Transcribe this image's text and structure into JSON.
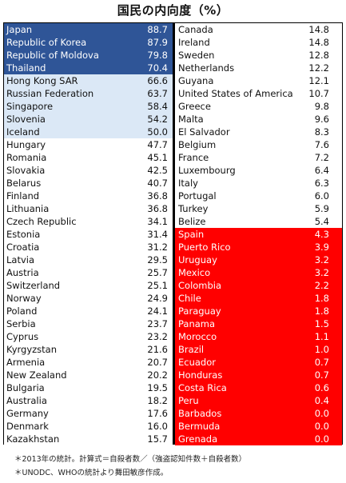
{
  "title": "国民の内向度（%）",
  "colors": {
    "tier1": "#2f5597",
    "tier2": "#dbe8f6",
    "tier3": "#ffffff",
    "tier4": "#ff0000"
  },
  "chart_data": {
    "type": "table",
    "title": "国民の内向度（%）",
    "left": [
      {
        "country": "Japan",
        "value": "88.7",
        "tier": 1
      },
      {
        "country": "Republic of Korea",
        "value": "87.9",
        "tier": 1
      },
      {
        "country": "Republic of Moldova",
        "value": "79.8",
        "tier": 1
      },
      {
        "country": "Thailand",
        "value": "70.4",
        "tier": 1
      },
      {
        "country": "Hong Kong SAR",
        "value": "66.6",
        "tier": 2
      },
      {
        "country": "Russian Federation",
        "value": "63.7",
        "tier": 2
      },
      {
        "country": "Singapore",
        "value": "58.4",
        "tier": 2
      },
      {
        "country": "Slovenia",
        "value": "54.2",
        "tier": 2
      },
      {
        "country": "Iceland",
        "value": "50.0",
        "tier": 2
      },
      {
        "country": "Hungary",
        "value": "47.7",
        "tier": 3
      },
      {
        "country": "Romania",
        "value": "45.1",
        "tier": 3
      },
      {
        "country": "Slovakia",
        "value": "42.5",
        "tier": 3
      },
      {
        "country": "Belarus",
        "value": "40.7",
        "tier": 3
      },
      {
        "country": "Finland",
        "value": "36.8",
        "tier": 3
      },
      {
        "country": "Lithuania",
        "value": "36.8",
        "tier": 3
      },
      {
        "country": "Czech Republic",
        "value": "34.1",
        "tier": 3
      },
      {
        "country": "Estonia",
        "value": "31.4",
        "tier": 3
      },
      {
        "country": "Croatia",
        "value": "31.2",
        "tier": 3
      },
      {
        "country": "Latvia",
        "value": "29.5",
        "tier": 3
      },
      {
        "country": "Austria",
        "value": "25.7",
        "tier": 3
      },
      {
        "country": "Switzerland",
        "value": "25.1",
        "tier": 3
      },
      {
        "country": "Norway",
        "value": "24.9",
        "tier": 3
      },
      {
        "country": "Poland",
        "value": "24.1",
        "tier": 3
      },
      {
        "country": "Serbia",
        "value": "23.7",
        "tier": 3
      },
      {
        "country": "Cyprus",
        "value": "23.2",
        "tier": 3
      },
      {
        "country": "Kyrgyzstan",
        "value": "21.6",
        "tier": 3
      },
      {
        "country": "Armenia",
        "value": "20.7",
        "tier": 3
      },
      {
        "country": "New Zealand",
        "value": "20.2",
        "tier": 3
      },
      {
        "country": "Bulgaria",
        "value": "19.5",
        "tier": 3
      },
      {
        "country": "Australia",
        "value": "18.2",
        "tier": 3
      },
      {
        "country": "Germany",
        "value": "17.6",
        "tier": 3
      },
      {
        "country": "Denmark",
        "value": "16.0",
        "tier": 3
      },
      {
        "country": "Kazakhstan",
        "value": "15.7",
        "tier": 3
      }
    ],
    "right": [
      {
        "country": "Canada",
        "value": "14.8",
        "tier": 3
      },
      {
        "country": "Ireland",
        "value": "14.8",
        "tier": 3
      },
      {
        "country": "Sweden",
        "value": "12.8",
        "tier": 3
      },
      {
        "country": "Netherlands",
        "value": "12.2",
        "tier": 3
      },
      {
        "country": "Guyana",
        "value": "12.1",
        "tier": 3
      },
      {
        "country": "United States of America",
        "value": "10.7",
        "tier": 3
      },
      {
        "country": "Greece",
        "value": "9.8",
        "tier": 3
      },
      {
        "country": "Malta",
        "value": "9.6",
        "tier": 3
      },
      {
        "country": "El Salvador",
        "value": "8.3",
        "tier": 3
      },
      {
        "country": "Belgium",
        "value": "7.6",
        "tier": 3
      },
      {
        "country": "France",
        "value": "7.2",
        "tier": 3
      },
      {
        "country": "Luxembourg",
        "value": "6.4",
        "tier": 3
      },
      {
        "country": "Italy",
        "value": "6.3",
        "tier": 3
      },
      {
        "country": "Portugal",
        "value": "6.0",
        "tier": 3
      },
      {
        "country": "Turkey",
        "value": "5.9",
        "tier": 3
      },
      {
        "country": "Belize",
        "value": "5.4",
        "tier": 3
      },
      {
        "country": "Spain",
        "value": "4.3",
        "tier": 4
      },
      {
        "country": "Puerto Rico",
        "value": "3.9",
        "tier": 4
      },
      {
        "country": "Uruguay",
        "value": "3.2",
        "tier": 4
      },
      {
        "country": "Mexico",
        "value": "3.2",
        "tier": 4
      },
      {
        "country": "Colombia",
        "value": "2.2",
        "tier": 4
      },
      {
        "country": "Chile",
        "value": "1.8",
        "tier": 4
      },
      {
        "country": "Paraguay",
        "value": "1.8",
        "tier": 4
      },
      {
        "country": "Panama",
        "value": "1.5",
        "tier": 4
      },
      {
        "country": "Morocco",
        "value": "1.1",
        "tier": 4
      },
      {
        "country": "Brazil",
        "value": "1.0",
        "tier": 4
      },
      {
        "country": "Ecuador",
        "value": "0.7",
        "tier": 4
      },
      {
        "country": "Honduras",
        "value": "0.7",
        "tier": 4
      },
      {
        "country": "Costa Rica",
        "value": "0.6",
        "tier": 4
      },
      {
        "country": "Peru",
        "value": "0.4",
        "tier": 4
      },
      {
        "country": "Barbados",
        "value": "0.0",
        "tier": 4
      },
      {
        "country": "Bermuda",
        "value": "0.0",
        "tier": 4
      },
      {
        "country": "Grenada",
        "value": "0.0",
        "tier": 4
      }
    ]
  },
  "notes": {
    "line1": "＊2013年の統計。計算式＝自殺者数／（強盗認知件数＋自殺者数）",
    "line2": "＊UNODC、WHOの統計より舞田敏彦作成。"
  }
}
